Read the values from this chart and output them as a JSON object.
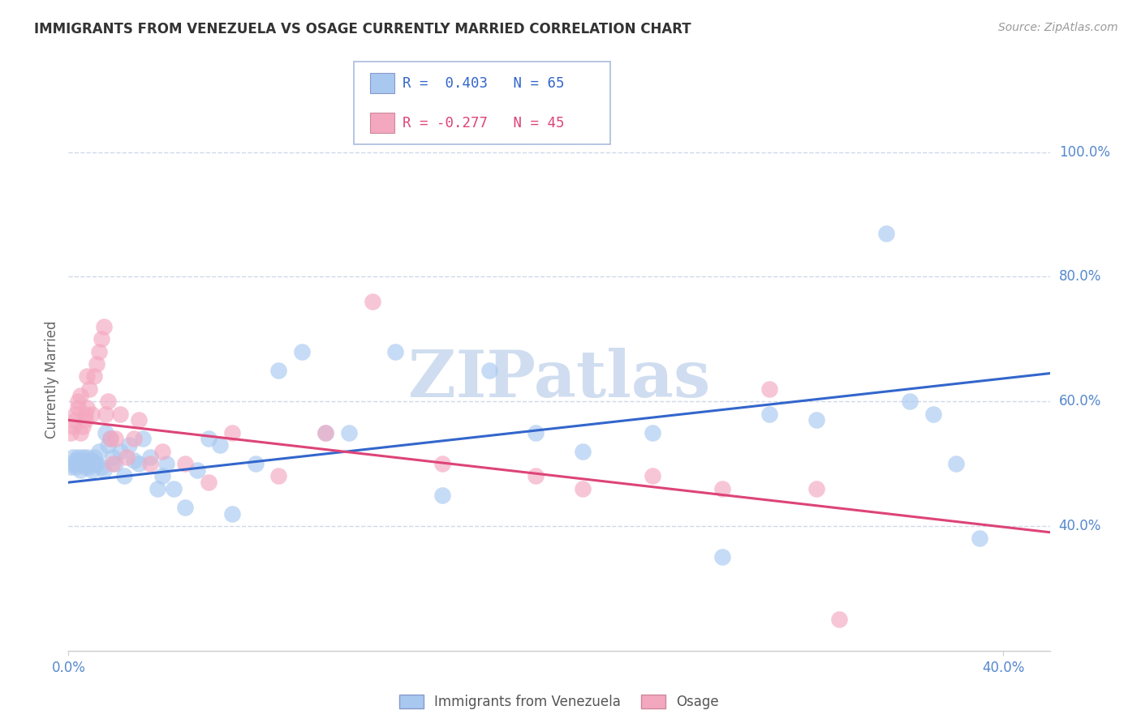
{
  "title": "IMMIGRANTS FROM VENEZUELA VS OSAGE CURRENTLY MARRIED CORRELATION CHART",
  "source": "Source: ZipAtlas.com",
  "ylabel": "Currently Married",
  "ytick_labels": [
    "100.0%",
    "80.0%",
    "60.0%",
    "40.0%"
  ],
  "ytick_values": [
    1.0,
    0.8,
    0.6,
    0.4
  ],
  "xlim": [
    0.0,
    0.42
  ],
  "ylim": [
    0.2,
    1.07
  ],
  "watermark": "ZIPatlas",
  "blue_R": "0.403",
  "blue_N": "65",
  "pink_R": "-0.277",
  "pink_N": "45",
  "blue_scatter_x": [
    0.001,
    0.002,
    0.002,
    0.003,
    0.003,
    0.004,
    0.004,
    0.005,
    0.005,
    0.006,
    0.006,
    0.007,
    0.007,
    0.008,
    0.008,
    0.009,
    0.009,
    0.01,
    0.01,
    0.011,
    0.011,
    0.012,
    0.013,
    0.014,
    0.015,
    0.016,
    0.017,
    0.018,
    0.019,
    0.02,
    0.022,
    0.024,
    0.026,
    0.028,
    0.03,
    0.032,
    0.035,
    0.038,
    0.04,
    0.042,
    0.045,
    0.05,
    0.055,
    0.06,
    0.065,
    0.07,
    0.08,
    0.09,
    0.1,
    0.11,
    0.12,
    0.14,
    0.16,
    0.18,
    0.2,
    0.22,
    0.25,
    0.28,
    0.3,
    0.32,
    0.35,
    0.37,
    0.38,
    0.39,
    0.36
  ],
  "blue_scatter_y": [
    0.495,
    0.5,
    0.51,
    0.495,
    0.505,
    0.5,
    0.51,
    0.5,
    0.49,
    0.5,
    0.51,
    0.495,
    0.505,
    0.5,
    0.51,
    0.495,
    0.5,
    0.505,
    0.49,
    0.5,
    0.51,
    0.5,
    0.52,
    0.495,
    0.49,
    0.55,
    0.53,
    0.54,
    0.51,
    0.5,
    0.52,
    0.48,
    0.53,
    0.505,
    0.5,
    0.54,
    0.51,
    0.46,
    0.48,
    0.5,
    0.46,
    0.43,
    0.49,
    0.54,
    0.53,
    0.42,
    0.5,
    0.65,
    0.68,
    0.55,
    0.55,
    0.68,
    0.45,
    0.65,
    0.55,
    0.52,
    0.55,
    0.35,
    0.58,
    0.57,
    0.87,
    0.58,
    0.5,
    0.38,
    0.6
  ],
  "pink_scatter_x": [
    0.001,
    0.002,
    0.003,
    0.003,
    0.004,
    0.004,
    0.005,
    0.005,
    0.006,
    0.007,
    0.007,
    0.008,
    0.008,
    0.009,
    0.01,
    0.011,
    0.012,
    0.013,
    0.014,
    0.015,
    0.016,
    0.017,
    0.018,
    0.019,
    0.02,
    0.022,
    0.025,
    0.028,
    0.03,
    0.035,
    0.04,
    0.05,
    0.06,
    0.07,
    0.09,
    0.11,
    0.13,
    0.16,
    0.2,
    0.22,
    0.25,
    0.28,
    0.3,
    0.32,
    0.33
  ],
  "pink_scatter_y": [
    0.55,
    0.56,
    0.57,
    0.58,
    0.59,
    0.6,
    0.61,
    0.55,
    0.56,
    0.57,
    0.58,
    0.59,
    0.64,
    0.62,
    0.58,
    0.64,
    0.66,
    0.68,
    0.7,
    0.72,
    0.58,
    0.6,
    0.54,
    0.5,
    0.54,
    0.58,
    0.51,
    0.54,
    0.57,
    0.5,
    0.52,
    0.5,
    0.47,
    0.55,
    0.48,
    0.55,
    0.76,
    0.5,
    0.48,
    0.46,
    0.48,
    0.46,
    0.62,
    0.46,
    0.25
  ],
  "blue_line_x": [
    0.0,
    0.42
  ],
  "blue_line_y": [
    0.47,
    0.645
  ],
  "pink_line_x": [
    0.0,
    0.42
  ],
  "pink_line_y": [
    0.57,
    0.39
  ],
  "blue_color": "#a8c8f0",
  "pink_color": "#f4a8c0",
  "blue_line_color": "#3366cc",
  "pink_line_color": "#dd4477",
  "grid_color": "#d0d8e8",
  "tick_label_color": "#5588cc",
  "title_color": "#333333",
  "bg_color": "#ffffff",
  "legend_border_color": "#aabbdd",
  "watermark_color": "#d0ddf0",
  "axis_color": "#cccccc",
  "bottom_legend_labels": [
    "Immigrants from Venezuela",
    "Osage"
  ]
}
